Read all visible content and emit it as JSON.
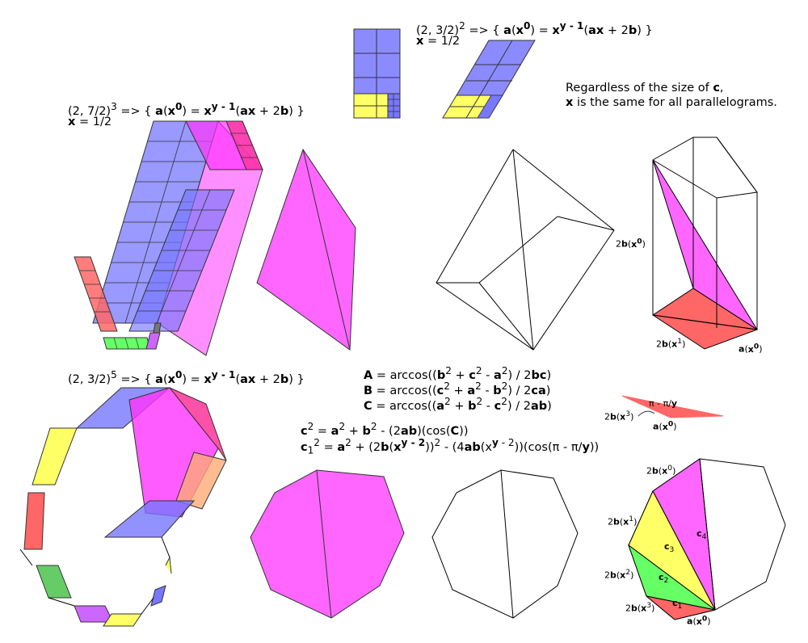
{
  "top_caption": {
    "line1_html": "(2, 3/2)<sup>2</sup> => { <b>a</b>(<b>x<sup>0</sup></b>) = <b>x<sup>y - 1</sup></b>(<b>ax</b> + 2<b>b</b>) }",
    "line2_html": "<b>x</b> = 1/2"
  },
  "note": {
    "line1_html": "Regardless of the size of <b>c</b>,",
    "line2_html": "<b>x</b> is the same for all parallelograms."
  },
  "left_caption": {
    "line1_html": "(2, 7/2)<sup>3</sup> => { <b>a</b>(<b>x<sup>0</sup></b>) = <b>x<sup>y - 1</sup></b>(<b>ax</b> + 2<b>b</b>) }",
    "line2_html": "<b>x</b> = 1/2"
  },
  "bottom_caption": {
    "line1_html": "(2, 3/2)<sup>5</sup> => { <b>a</b>(<b>x<sup>0</sup></b>) = <b>x<sup>y - 1</sup></b>(<b>ax</b> + 2<b>b</b>) }"
  },
  "angle_formulas": [
    "<b>A</b> = arccos((<b>b</b><sup>2</sup> + <b>c</b><sup>2</sup> - <b>a</b><sup>2</sup>) / 2<b>bc</b>)",
    "<b>B</b> = arccos((<b>c</b><sup>2</sup> + <b>a</b><sup>2</sup> - <b>b</b><sup>2</sup>) / 2<b>ca</b>)",
    "<b>C</b> = arccos((<b>a</b><sup>2</sup> + <b>b</b><sup>2</sup> - <b>c</b><sup>2</sup>) / 2<b>ab</b>)"
  ],
  "law_formulas": [
    "<b>c</b><sup>2</sup> = <b>a</b><sup>2</sup> + <b>b</b><sup>2</sup> - (2<b>ab</b>)(cos(<b>C</b>))",
    "<b>c</b><sub>1</sub><sup>2</sup> = <b>a</b><sup>2</sup> + (2<b>b</b>(<b>x<sup>y - 2</sup></b>))<sup>2</sup> - (4<b>ab</b>(x<sup><b>y</b> - 2</sup>))(cos(π - π/<b>y</b>))"
  ],
  "prism_labels": {
    "side_html": "2<b>b</b>(<b>x<sup>0</sup></b>)",
    "bottom_left_html": "2<b>b</b>(<b>x</b><sup>1</sup>)",
    "bottom_right_html": "<b>a</b>(<b>x<sup>0</sup></b>)"
  },
  "wedge_labels": {
    "left_html": "2<b>b</b>(<b>x</b><sup>3</sup>)",
    "angle_html": "π - π/<b>y</b>",
    "right_html": "<b>a</b>(<b>x<sup>0</sup></b>)"
  },
  "fan_labels": {
    "b0_html": "2<b>b</b>(<b>x</b><sup>0</sup>)",
    "b1_html": "2<b>b</b>(<b>x</b><sup>1</sup>)",
    "b2_html": "2<b>b</b>(<b>x</b><sup>2</sup>)",
    "b3_html": "2<b>b</b>(<b>x</b><sup>3</sup>)",
    "a0_html": "<b>a</b>(<b>x<sup>0</sup></b>)",
    "c1_html": "<b>c</b><sub>1</sub>",
    "c2_html": "<b>c</b><sub>2</sub>",
    "c3_html": "<b>c</b><sub>3</sub>",
    "c4_html": "<b>c</b><sub>4</sub>"
  },
  "colors": {
    "blue": "#7777ff",
    "magenta": "#ff33ff",
    "yellow": "#ffff66",
    "red": "#ff6666",
    "green": "#66ff66",
    "outline": "#000000"
  }
}
